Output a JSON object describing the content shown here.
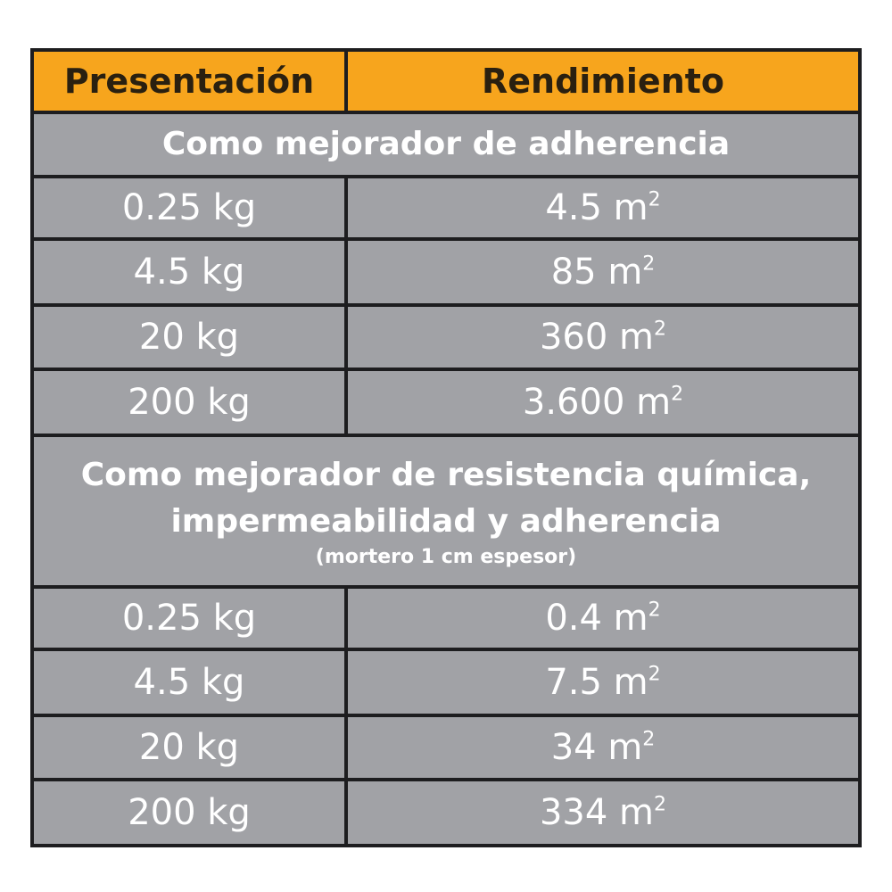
{
  "header": {
    "col1": "Presentación",
    "col2": "Rendimiento"
  },
  "section1": {
    "title": "Como mejorador de adherencia",
    "rows": [
      {
        "presentacion": "0.25 kg",
        "rendimiento": "4.5 m",
        "unit_sup": "2"
      },
      {
        "presentacion": "4.5 kg",
        "rendimiento": "85 m",
        "unit_sup": "2"
      },
      {
        "presentacion": "20 kg",
        "rendimiento": "360 m",
        "unit_sup": "2"
      },
      {
        "presentacion": "200 kg",
        "rendimiento": "3.600 m",
        "unit_sup": "2"
      }
    ]
  },
  "section2": {
    "title_line1": "Como mejorador de resistencia química,",
    "title_line2": "impermeabilidad y adherencia",
    "note": "(mortero 1 cm espesor)",
    "rows": [
      {
        "presentacion": "0.25 kg",
        "rendimiento": "0.4 m",
        "unit_sup": "2"
      },
      {
        "presentacion": "4.5 kg",
        "rendimiento": "7.5 m",
        "unit_sup": "2"
      },
      {
        "presentacion": "20 kg",
        "rendimiento": "34 m",
        "unit_sup": "2"
      },
      {
        "presentacion": "200 kg",
        "rendimiento": "334 m",
        "unit_sup": "2"
      }
    ]
  },
  "colors": {
    "header_bg": "#f7a51d",
    "cell_bg": "#a1a2a6",
    "border": "#1d1d1f"
  }
}
